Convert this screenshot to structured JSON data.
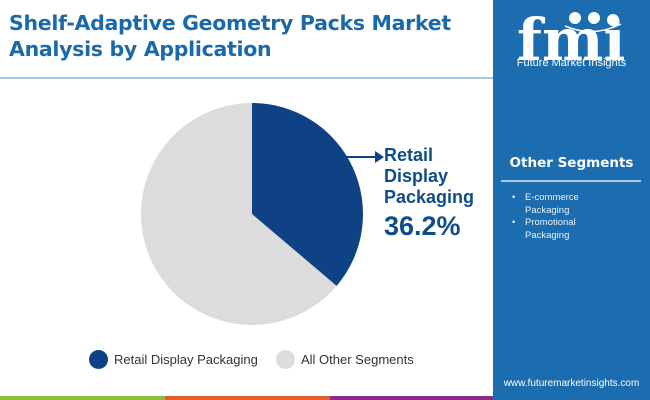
{
  "header": {
    "title": "Shelf-Adaptive Geometry Packs Market Analysis by Application"
  },
  "brand": {
    "logo_letters": "fmi",
    "name": "Future Market Insights",
    "website": "www.futuremarketinsights.com"
  },
  "sidebar": {
    "title": "Other Segments",
    "items": [
      "E-commerce Packaging",
      "Promotional Packaging"
    ]
  },
  "callout": {
    "label": "Retail Display Packaging",
    "value": "36.2%"
  },
  "legend": [
    {
      "label": "Retail Display Packaging",
      "color": "#0f4285"
    },
    {
      "label": "All Other Segments",
      "color": "#dcdcdc"
    }
  ],
  "colors": {
    "title": "#1a6aab",
    "sidebar": "#1b6daf",
    "primary_slice": "#0f4285",
    "other_slice": "#dcdcdc",
    "bar_green": "#8dbd3e",
    "bar_orange": "#e55b2b",
    "bar_purple": "#8e2a8c"
  },
  "chart_data": {
    "type": "pie",
    "title": "Shelf-Adaptive Geometry Packs Market Analysis by Application",
    "categories": [
      "Retail Display Packaging",
      "All Other Segments"
    ],
    "values": [
      36.2,
      63.8
    ],
    "unit": "%",
    "colors": [
      "#0f4285",
      "#dcdcdc"
    ],
    "start_angle": "12 o'clock, clockwise",
    "annotations": [
      {
        "label": "Retail Display Packaging",
        "value": "36.2%"
      }
    ],
    "legend_position": "bottom"
  }
}
